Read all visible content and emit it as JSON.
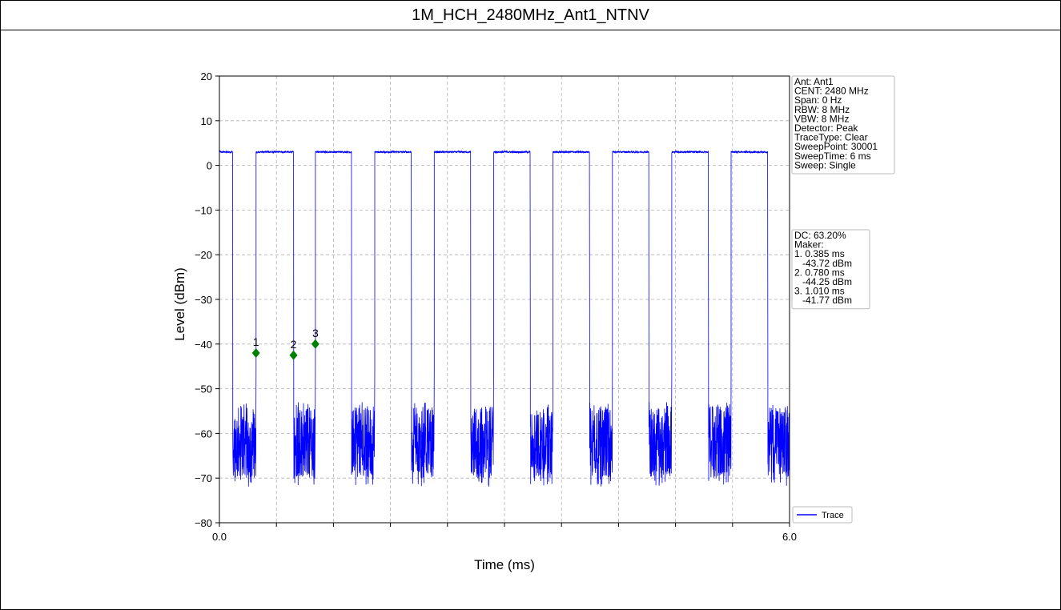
{
  "header": {
    "title": "1M_HCH_2480MHz_Ant1_NTNV"
  },
  "chart_data": {
    "type": "line",
    "title": "",
    "xlabel": "Time (ms)",
    "ylabel": "Level (dBm)",
    "xlim": [
      0.0,
      6.0
    ],
    "ylim": [
      -80,
      20
    ],
    "x_tick_labels": [
      "0.0",
      "6.0"
    ],
    "y_ticks": [
      20,
      10,
      0,
      -10,
      -20,
      -30,
      -40,
      -50,
      -60,
      -70,
      -80
    ],
    "grid": true,
    "legend": {
      "placement": "lower-right",
      "entries": [
        "Trace"
      ]
    },
    "series": [
      {
        "name": "Trace",
        "color": "#0000ff",
        "on_level_dbm": 3,
        "off_level_range_dbm": [
          -72,
          -53
        ],
        "on_intervals_ms": [
          [
            0.0,
            0.14
          ],
          [
            0.385,
            0.78
          ],
          [
            1.01,
            1.39
          ],
          [
            1.635,
            2.02
          ],
          [
            2.26,
            2.645
          ],
          [
            2.885,
            3.27
          ],
          [
            3.51,
            3.895
          ],
          [
            4.135,
            4.52
          ],
          [
            4.76,
            5.145
          ],
          [
            5.385,
            5.77
          ]
        ]
      }
    ],
    "markers": [
      {
        "label": "1",
        "x": 0.385,
        "y": -42.0
      },
      {
        "label": "2",
        "x": 0.78,
        "y": -42.5
      },
      {
        "label": "3",
        "x": 1.01,
        "y": -40.0
      }
    ]
  },
  "info_box": {
    "lines": [
      "Ant: Ant1",
      "CENT: 2480 MHz",
      "Span: 0 Hz",
      "RBW: 8 MHz",
      "VBW: 8 MHz",
      "Detector: Peak",
      "TraceType: Clear",
      "SweepPoint: 30001",
      "SweepTime: 6 ms",
      "Sweep: Single"
    ]
  },
  "marker_box": {
    "lines": [
      "DC: 63.20%",
      "Maker:",
      "1. 0.385 ms",
      "   -43.72 dBm",
      "2. 0.780 ms",
      "   -44.25 dBm",
      "3. 1.010 ms",
      "   -41.77 dBm"
    ]
  },
  "colors": {
    "trace": "#0000ff",
    "marker": "#008000",
    "grid": "#b0b0b0"
  }
}
